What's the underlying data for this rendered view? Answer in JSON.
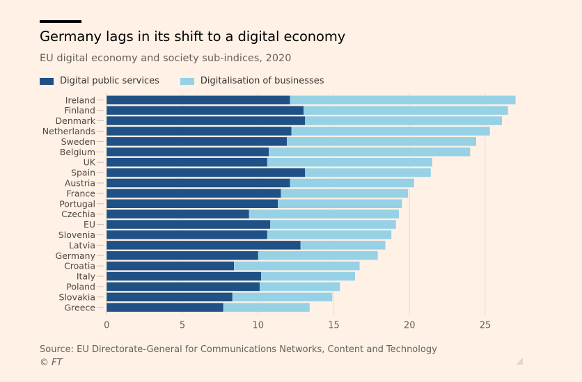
{
  "header": {
    "title": "Germany lags in its shift to a digital economy",
    "subtitle": "EU digital economy and society sub-indices, 2020"
  },
  "colors": {
    "background": "#fff1e5",
    "digital_public_services": "#1f5186",
    "digitalisation_of_businesses": "#96d1e6",
    "gridline": "#e9ddd2",
    "tick_text": "#66605c"
  },
  "chart_data": {
    "type": "bar",
    "orientation": "horizontal",
    "stacked": true,
    "title": "Germany lags in its shift to a digital economy",
    "subtitle": "EU digital economy and society sub-indices, 2020",
    "xlabel": "",
    "ylabel": "",
    "xlim": [
      0,
      27
    ],
    "xticks": [
      0,
      5,
      10,
      15,
      20,
      25
    ],
    "grid": true,
    "legend_position": "top-left",
    "categories": [
      "Ireland",
      "Finland",
      "Denmark",
      "Netherlands",
      "Sweden",
      "Belgium",
      "UK",
      "Spain",
      "Austria",
      "France",
      "Portugal",
      "Czechia",
      "EU",
      "Slovenia",
      "Latvia",
      "Germany",
      "Croatia",
      "Italy",
      "Poland",
      "Slovakia",
      "Greece"
    ],
    "series": [
      {
        "name": "Digital public services",
        "values": [
          12.1,
          13.0,
          13.1,
          12.2,
          11.9,
          10.7,
          10.6,
          13.1,
          12.1,
          11.5,
          11.3,
          9.4,
          10.8,
          10.6,
          12.8,
          10.0,
          8.4,
          10.2,
          10.1,
          8.3,
          7.7
        ]
      },
      {
        "name": "Digitalisation of businesses",
        "values": [
          14.9,
          13.5,
          13.0,
          13.1,
          12.5,
          13.3,
          10.9,
          8.3,
          8.2,
          8.4,
          8.2,
          9.9,
          8.3,
          8.2,
          5.6,
          7.9,
          8.3,
          6.2,
          5.3,
          6.6,
          5.7
        ]
      }
    ]
  },
  "footer": {
    "source": "Source: EU Directorate-General for Communications Networks, Content and Technology",
    "copyright": "© FT"
  }
}
